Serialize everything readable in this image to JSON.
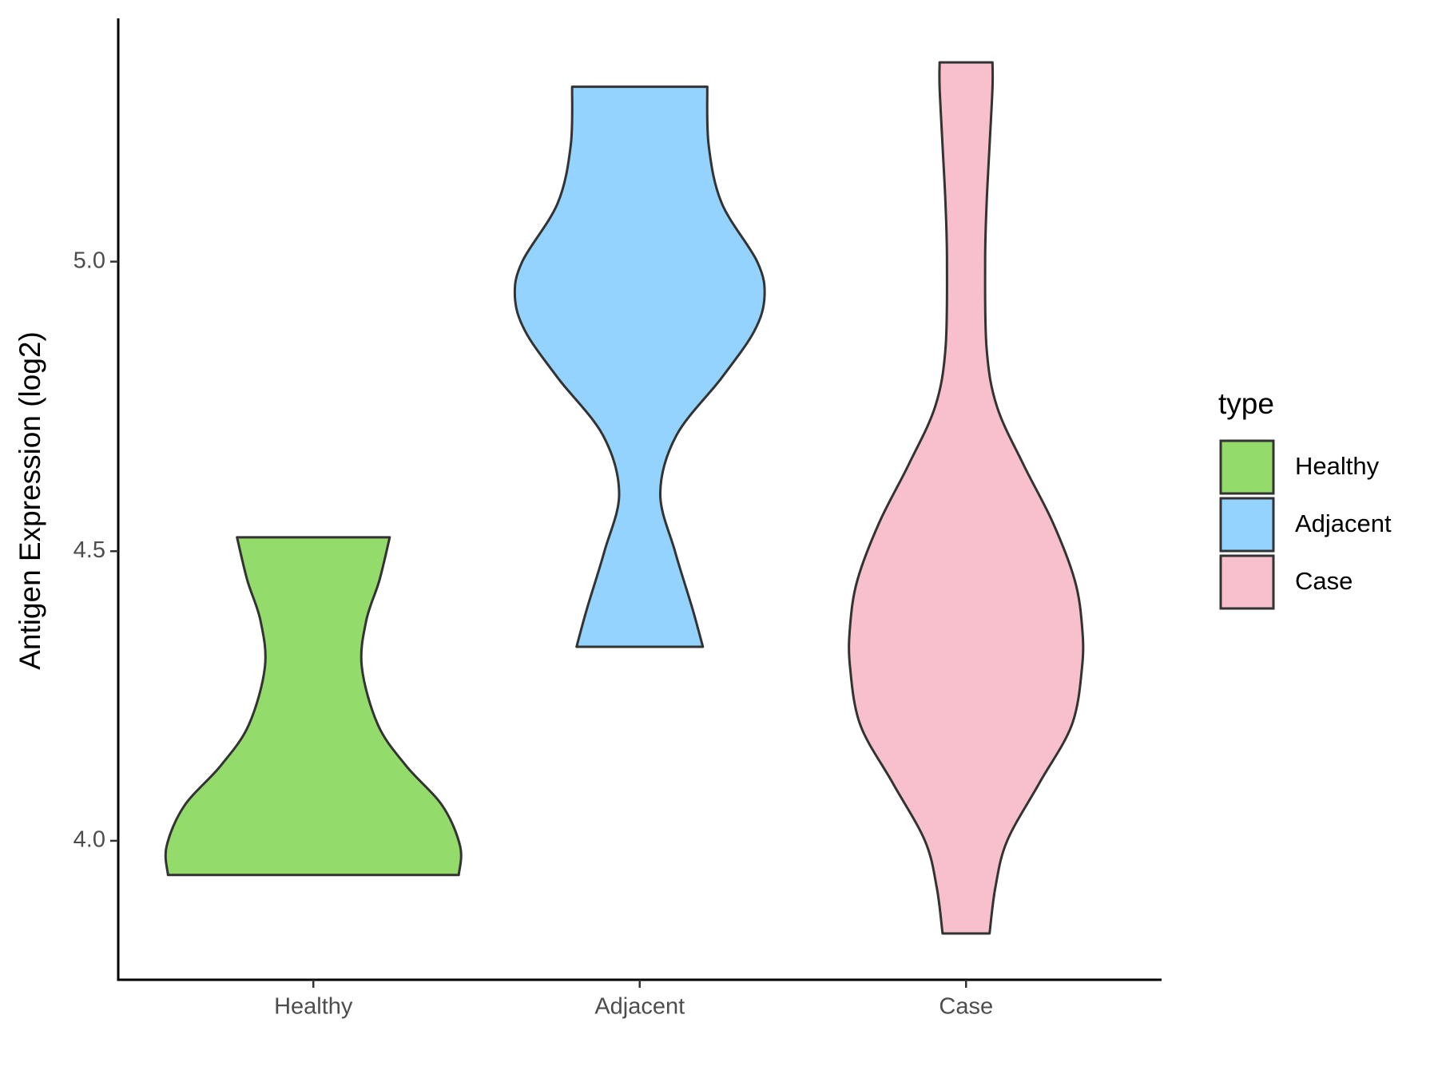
{
  "chart_data": {
    "type": "violin",
    "y_label": "Antigen Expression (log2)",
    "categories": [
      "Healthy",
      "Adjacent",
      "Case"
    ],
    "legend_title": "type",
    "ylim": [
      3.76,
      5.42
    ],
    "yticks": [
      {
        "value": 4.0,
        "label": "4.0"
      },
      {
        "value": 4.5,
        "label": "4.5"
      },
      {
        "value": 5.0,
        "label": "5.0"
      }
    ],
    "grid": false,
    "legend_position": "right",
    "series": [
      {
        "name": "Healthy",
        "color": "#93DB6A",
        "y": [
          3.941,
          3.99,
          4.06,
          4.13,
          4.2,
          4.3,
          4.38,
          4.45,
          4.524
        ],
        "density": [
          0.99,
          1,
          0.88,
          0.63,
          0.44,
          0.33,
          0.36,
          0.45,
          0.52
        ]
      },
      {
        "name": "Adjacent",
        "color": "#93D3FE",
        "y": [
          4.335,
          4.4,
          4.5,
          4.6,
          4.7,
          4.8,
          4.88,
          4.94,
          5.0,
          5.1,
          5.2,
          5.302
        ],
        "density": [
          0.43,
          0.36,
          0.24,
          0.14,
          0.25,
          0.56,
          0.78,
          0.85,
          0.8,
          0.56,
          0.47,
          0.46
        ]
      },
      {
        "name": "Case",
        "color": "#F7C0CC",
        "y": [
          3.84,
          3.92,
          4.0,
          4.1,
          4.2,
          4.3,
          4.37,
          4.45,
          4.55,
          4.65,
          4.75,
          4.85,
          5.0,
          5.1,
          5.2,
          5.3,
          5.344
        ],
        "density": [
          0.16,
          0.2,
          0.28,
          0.5,
          0.72,
          0.79,
          0.79,
          0.74,
          0.59,
          0.39,
          0.21,
          0.14,
          0.13,
          0.14,
          0.16,
          0.18,
          0.18
        ]
      }
    ]
  }
}
